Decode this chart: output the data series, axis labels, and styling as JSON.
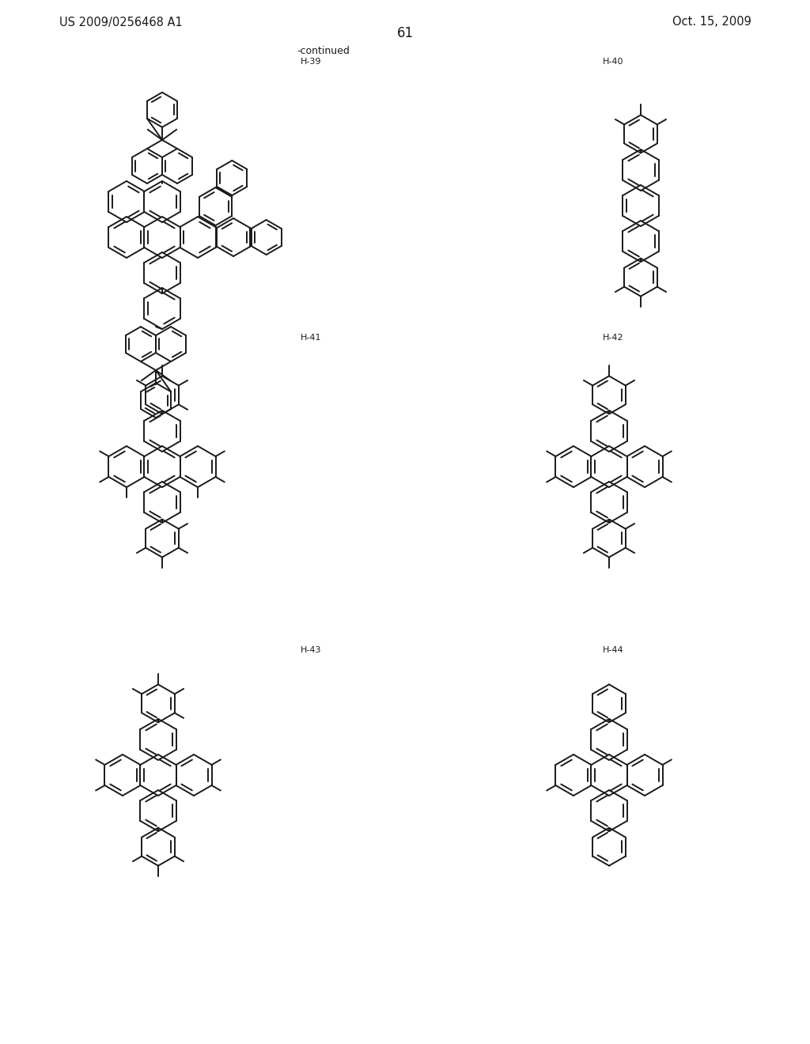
{
  "title_left": "US 2009/0256468 A1",
  "title_right": "Oct. 15, 2009",
  "page_number": "61",
  "continued_label": "-continued",
  "label_H39": "H-39",
  "label_H40": "H-40",
  "label_H41": "H-41",
  "label_H42": "H-42",
  "label_H43": "H-43",
  "label_H44": "H-44",
  "bg": "#ffffff",
  "lc": "#1a1a1a"
}
